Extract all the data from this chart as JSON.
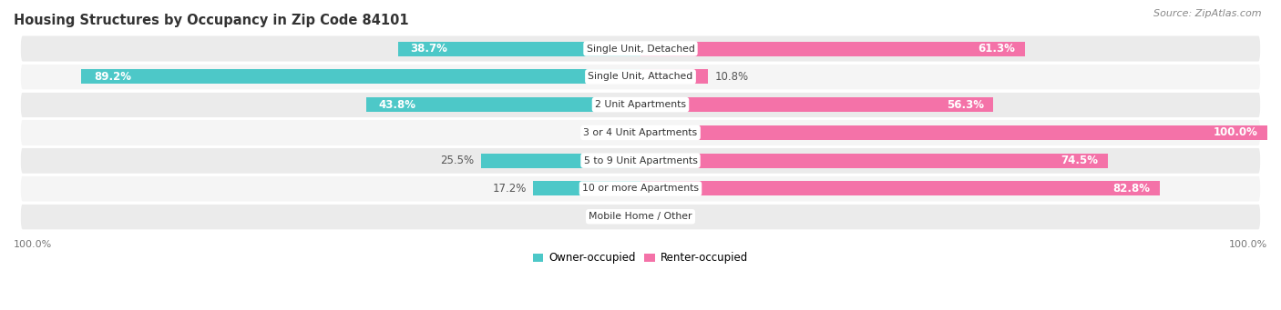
{
  "title": "Housing Structures by Occupancy in Zip Code 84101",
  "source": "Source: ZipAtlas.com",
  "categories": [
    "Single Unit, Detached",
    "Single Unit, Attached",
    "2 Unit Apartments",
    "3 or 4 Unit Apartments",
    "5 to 9 Unit Apartments",
    "10 or more Apartments",
    "Mobile Home / Other"
  ],
  "owner_pct": [
    38.7,
    89.2,
    43.8,
    0.0,
    25.5,
    17.2,
    0.0
  ],
  "renter_pct": [
    61.3,
    10.8,
    56.3,
    100.0,
    74.5,
    82.8,
    0.0
  ],
  "owner_color": "#4DC8C8",
  "renter_color": "#F472A8",
  "row_color_odd": "#EBEBEB",
  "row_color_even": "#F5F5F5",
  "title_fontsize": 10.5,
  "source_fontsize": 8,
  "bar_height": 0.52,
  "label_fontsize": 8.5
}
